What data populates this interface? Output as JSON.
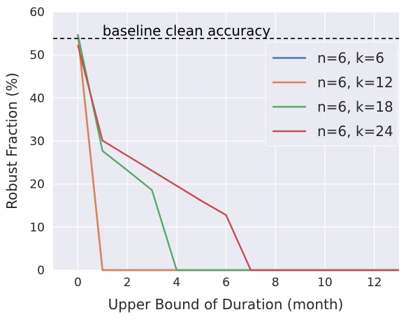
{
  "chart_data": {
    "type": "line",
    "title": "",
    "xlabel": "Upper Bound of Duration (month)",
    "ylabel": "Robust Fraction (%)",
    "xlim": [
      -1,
      13
    ],
    "ylim": [
      0,
      60
    ],
    "xticks": [
      0,
      2,
      4,
      6,
      8,
      10,
      12
    ],
    "yticks": [
      0,
      10,
      20,
      30,
      40,
      50,
      60
    ],
    "grid": true,
    "legend_position": "top-right",
    "baseline": {
      "label": "baseline clean accuracy",
      "value": 53.8,
      "color": "#000000",
      "style": "dashed"
    },
    "series": [
      {
        "name": "n=6, k=6",
        "color": "#4c72b0",
        "x": [
          0,
          1,
          2,
          3,
          4,
          5,
          6,
          7,
          8,
          9,
          10,
          11,
          12,
          13
        ],
        "y": [
          54.8,
          0,
          0,
          0,
          0,
          0,
          0,
          0,
          0,
          0,
          0,
          0,
          0,
          0
        ]
      },
      {
        "name": "n=6, k=12",
        "color": "#dd8452",
        "x": [
          0,
          1,
          2,
          3,
          4,
          5,
          6,
          7,
          8,
          9,
          10,
          11,
          12,
          13
        ],
        "y": [
          54.8,
          0,
          0,
          0,
          0,
          0,
          0,
          0,
          0,
          0,
          0,
          0,
          0,
          0
        ]
      },
      {
        "name": "n=6, k=18",
        "color": "#55a868",
        "x": [
          0,
          1,
          2,
          3,
          4,
          5,
          6,
          7,
          8,
          9,
          10,
          11,
          12,
          13
        ],
        "y": [
          54.8,
          27.7,
          23.2,
          18.6,
          0,
          0,
          0,
          0,
          0,
          0,
          0,
          0,
          0,
          0
        ]
      },
      {
        "name": "n=6, k=24",
        "color": "#c44e52",
        "x": [
          0,
          1,
          2,
          3,
          4,
          5,
          6,
          7,
          8,
          9,
          10,
          11,
          12,
          13
        ],
        "y": [
          52.3,
          30.1,
          26.6,
          23.1,
          19.6,
          16.1,
          12.8,
          0,
          0,
          0,
          0,
          0,
          0,
          0
        ]
      }
    ]
  }
}
